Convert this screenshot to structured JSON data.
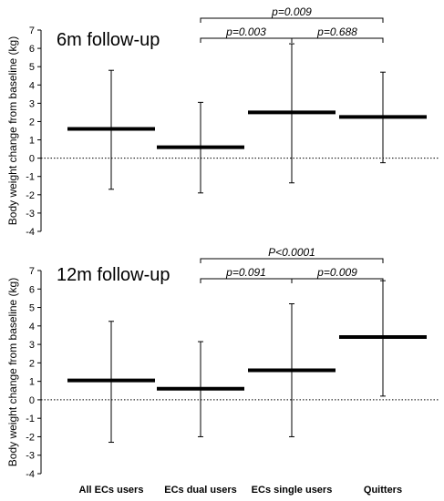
{
  "chart_data": [
    {
      "type": "scatter",
      "title": "6m follow-up",
      "ylabel": "Body weight change from baseline (kg)",
      "ylim": [
        -4,
        7
      ],
      "yticks": [
        -4,
        -3,
        -2,
        -1,
        0,
        1,
        2,
        3,
        4,
        5,
        6,
        7
      ],
      "categories": [
        "All ECs users",
        "ECs dual users",
        "ECs single users",
        "Quitters"
      ],
      "means": [
        1.6,
        0.6,
        2.5,
        2.25
      ],
      "upper": [
        4.8,
        3.05,
        6.25,
        4.7
      ],
      "lower": [
        -1.7,
        -1.9,
        -1.35,
        -0.25
      ],
      "reference_line": 0,
      "comparisons": [
        {
          "from": 1,
          "to": 2,
          "label": "p=0.003",
          "level": 0
        },
        {
          "from": 2,
          "to": 3,
          "label": "p=0.688",
          "level": 0
        },
        {
          "from": 1,
          "to": 3,
          "label": "p=0.009",
          "level": 1
        }
      ]
    },
    {
      "type": "scatter",
      "title": "12m follow-up",
      "ylabel": "Body weight change from baseline (kg)",
      "ylim": [
        -4,
        7
      ],
      "yticks": [
        -4,
        -3,
        -2,
        -1,
        0,
        1,
        2,
        3,
        4,
        5,
        6,
        7
      ],
      "categories": [
        "All ECs users",
        "ECs dual users",
        "ECs single users",
        "Quitters"
      ],
      "means": [
        1.05,
        0.6,
        1.6,
        3.4
      ],
      "upper": [
        4.25,
        3.15,
        5.2,
        6.45
      ],
      "lower": [
        -2.3,
        -2.0,
        -2.0,
        0.2
      ],
      "reference_line": 0,
      "comparisons": [
        {
          "from": 1,
          "to": 2,
          "label": "p=0.091",
          "level": 0
        },
        {
          "from": 2,
          "to": 3,
          "label": "p=0.009",
          "level": 0
        },
        {
          "from": 1,
          "to": 3,
          "label": "P<0.0001",
          "level": 1
        }
      ]
    }
  ]
}
